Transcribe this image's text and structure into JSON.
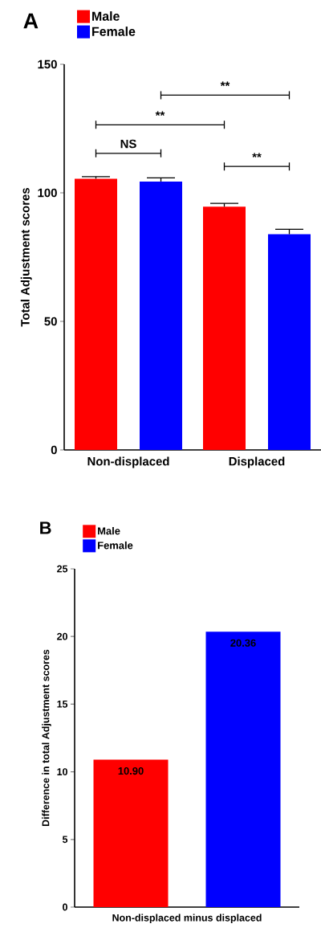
{
  "chart_data": [
    {
      "type": "bar",
      "title": "A",
      "ylabel": "Total Adjustment scores",
      "categories": [
        "Non-displaced",
        "Displaced"
      ],
      "series": [
        {
          "name": "Male",
          "color": "#ff0000",
          "values": [
            105.5,
            94.6
          ],
          "errors": [
            0.8,
            1.3
          ]
        },
        {
          "name": "Female",
          "color": "#0000ff",
          "values": [
            104.4,
            83.9
          ],
          "errors": [
            1.4,
            1.9
          ]
        }
      ],
      "ylim": [
        0,
        150
      ],
      "yticks": [
        0,
        50,
        100,
        150
      ],
      "legend": "top left",
      "grid": false,
      "annotations": [
        "NS",
        "**",
        "**",
        "**"
      ]
    },
    {
      "type": "bar",
      "title": "B",
      "ylabel": "Difference in total Adjustment scores",
      "categories": [
        "Non-displaced minus displaced"
      ],
      "series": [
        {
          "name": "Male",
          "color": "#ff0000",
          "values": [
            10.9
          ],
          "value_labels": [
            "10.90"
          ]
        },
        {
          "name": "Female",
          "color": "#0000ff",
          "values": [
            20.36
          ],
          "value_labels": [
            "20.36"
          ]
        }
      ],
      "ylim": [
        0,
        25
      ],
      "yticks": [
        0,
        5,
        10,
        15,
        20,
        25
      ],
      "legend": "top left",
      "grid": false
    }
  ]
}
